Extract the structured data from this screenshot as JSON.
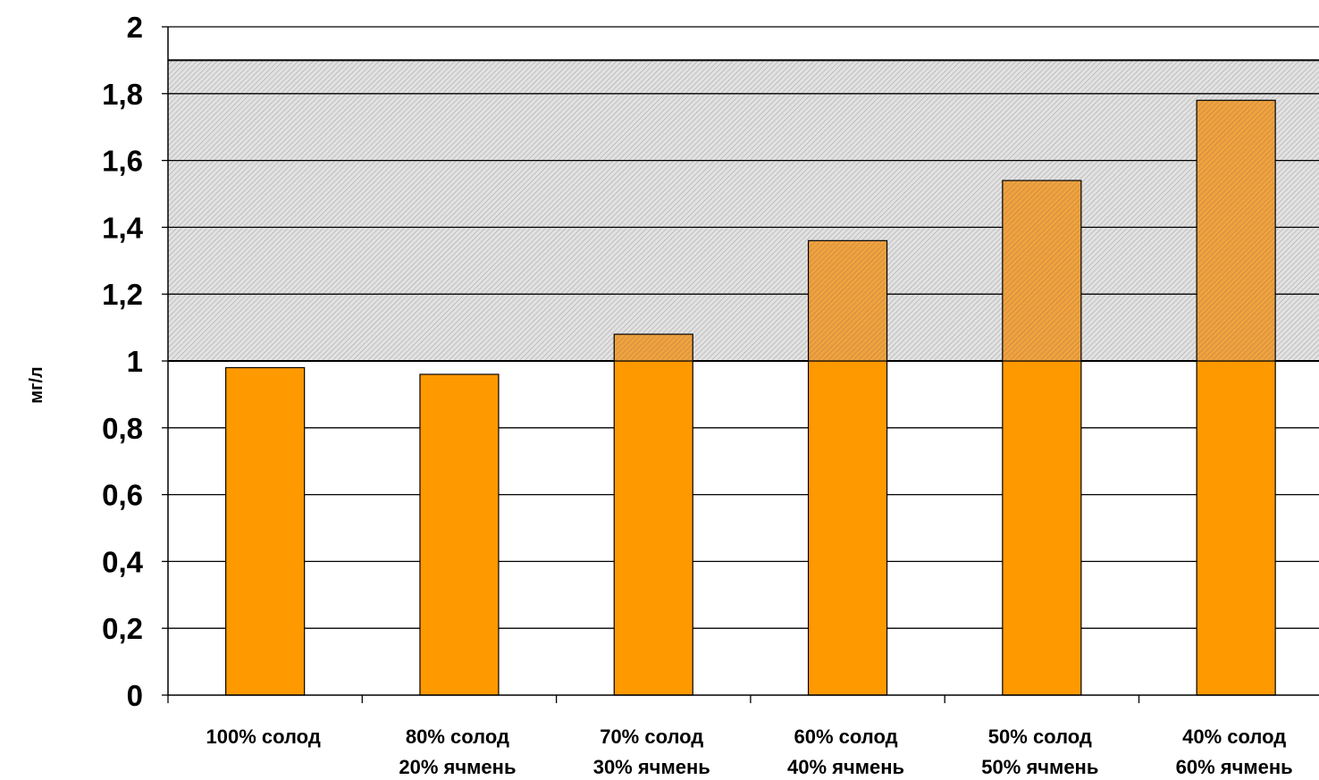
{
  "chart_data": {
    "type": "bar",
    "ylabel": "мг/л",
    "ylim": [
      0,
      2
    ],
    "yticks": [
      0,
      0.2,
      0.4,
      0.6,
      0.8,
      1,
      1.2,
      1.4,
      1.6,
      1.8,
      2
    ],
    "ytick_labels": [
      "0",
      "0,2",
      "0,4",
      "0,6",
      "0,8",
      "1",
      "1,2",
      "1,4",
      "1,6",
      "1,8",
      "2"
    ],
    "categories": [
      [
        "100% солод"
      ],
      [
        "80% солод",
        "20% ячмень"
      ],
      [
        "70% солод",
        "30% ячмень"
      ],
      [
        "60% солод",
        "40% ячмень"
      ],
      [
        "50% солод",
        "50% ячмень"
      ],
      [
        "40% солод",
        "60% ячмень"
      ]
    ],
    "values": [
      0.98,
      0.96,
      1.08,
      1.36,
      1.54,
      1.78
    ],
    "shaded_band": [
      1,
      1.9
    ],
    "grid": true,
    "bar_color": "#FF9900",
    "band_color": "#C8C8C8"
  }
}
